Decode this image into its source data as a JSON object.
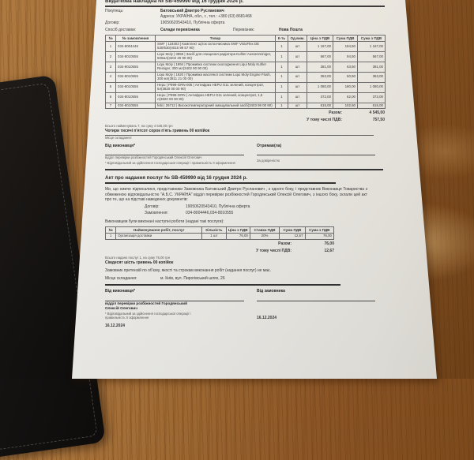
{
  "colors": {
    "wood_base": "#9d6832",
    "paper": "#f5f4f0",
    "folder": "#151312",
    "ink": "#3a3a3c"
  },
  "invoice": {
    "title": "Видаткова накладна № SB-459990 від 16 грудня 2024 р.",
    "buyer_label": "Покупець:",
    "buyer_name": "Батовський Дмитро Русланович",
    "buyer_address": "Адреса: УКРАЇНА, обл., г., тел.: +380 (63) 8681468",
    "contract_label": "Договір:",
    "contract_value": "19050620543410, Публічна оферта",
    "delivery_label": "Спосіб доставки:",
    "delivery_value": "Склади перевізника",
    "carrier_label": "Перевізник:",
    "carrier_value": "Нова Пошта",
    "table": {
      "headers": [
        "№",
        "№ замовлення",
        "Товар",
        "К-ть",
        "Од.вим.",
        "Ціна з ПДВ",
        "Сума ПДВ",
        "Сума з ПДВ"
      ],
      "rows": [
        [
          "1",
          "034-8004446",
          "SWF | 119303 | Комплект щіток склоочисника SWF VisioFlex DE 530/530(4016 99 57 90)",
          "1",
          "шт",
          "1 167,00",
          "194,50",
          "1 167,00"
        ],
        [
          "2",
          "034-8010555",
          "Liqui Moly | 3959 | Засіб для очищення радіатора Kuhler Aussenreiniger, 500мл(3402 20 90 00)",
          "1",
          "шт",
          "567,00",
          "94,50",
          "567,00"
        ],
        [
          "3",
          "034-8010555",
          "Liqui Moly | 1994 | Промивка системи охолодження Liqui Moly Kuhler Reiniger, 300 мл(3402 90 90 00)",
          "1",
          "шт",
          "381,00",
          "63,50",
          "381,00"
        ],
        [
          "4",
          "034-8010555",
          "Liqui Moly | 1920 | Промивка масляної системи Liqui Moly Engine Flush, 300 мл(3811 21 00 00)",
          "1",
          "шт",
          "363,00",
          "60,50",
          "363,00"
        ],
        [
          "5",
          "034-8010555",
          "Hepu | P999-GRN-005 | Антифриз HEPU G11 зелений, концентрат, 5л(3820 00 00 90)",
          "1",
          "шт",
          "1 080,00",
          "180,00",
          "1 080,00"
        ],
        [
          "6",
          "034-8010555",
          "Hepu | P999-GRN | Антифриз HEPU G11 зелений, концентрат, 1,5 л(3820 00 00 90)",
          "1",
          "шт",
          "372,00",
          "62,00",
          "372,00"
        ],
        [
          "7",
          "034-8010555",
          "febi | 26712 | Високотемпературний змащувальний засіб(3403 99 00 90)",
          "1",
          "шт",
          "615,00",
          "102,50",
          "615,00"
        ]
      ]
    },
    "total_label": "Разом:",
    "total_value": "4 545,00",
    "vat_label": "У тому числі ПДВ:",
    "vat_value": "757,50",
    "items_summary": "Всього найменувань 7, на суму 4 545,00 грн",
    "amount_words": "Чотири тисячі п'ятсот сорок п'ять гривень 00 копійок",
    "place_label": "Місце складання:",
    "from_executor": "Від виконавця*",
    "executor_name": "відділ перевірки розбіжностей Городянський Олексій Олегович",
    "executor_note": "* Відповідальний за здійснення господарської операції і правильність її оформлення",
    "received_label": "Отримав(ла)",
    "by_proxy": "За довіреністю"
  },
  "act": {
    "title": "Акт про надання послуг № SB-459990 від 16 грудня 2024 р.",
    "intro": "Ми, що нижче підписалися, представники Замовника Батовський Дмитро Русланович , з одного боку, і представник Виконавця Товариства з обмеженою відповідальністю \"А.Б.С. УКРАЇНА\" відділ перевірки розбіжностей Городянський Олексій Олегович, з іншого боку, склали цей акт про те, що на підставі наведених документів:",
    "contract_label": "Договір:",
    "contract_value": "19050620543410, Публічна оферта",
    "order_label": "Замовлення:",
    "order_value": "034-8004446,034-8010555",
    "work_intro": "Виконавцем були виконані наступні роботи (надані такі послуги):",
    "table": {
      "headers": [
        "№",
        "Найменування робіт, послуг",
        "Кількість",
        "Ціна з ПДВ",
        "Ставка ПДВ",
        "Сума ПДВ",
        "Сума з ПДВ"
      ],
      "rows": [
        [
          "1",
          "Організація доставки",
          "1 шт",
          "76,00",
          "20%",
          "12,67",
          "76,00"
        ]
      ]
    },
    "total_label": "Разом:",
    "total_value": "76,00",
    "vat_label": "У тому числі ПДВ:",
    "vat_value": "12,67",
    "items_summary": "Всього надано послуг 1, на суму 76,00 грн",
    "amount_words": "Сімдесят шість гривень 00 копійок",
    "claims": "Замовник претензій по об'єму, якості та строкам виконання робіт (надання послуг) не має.",
    "place_label": "Місце складання:",
    "place_value": "м. Київ, вул. Пирогівський шлях, 26",
    "from_executor": "Від виконавця*",
    "from_customer": "Від замовника",
    "executor_name": "відділ перевірки розбіжностей Городянський Олексій Олегович",
    "executor_note": "* Відповідальний за здійснення господарської операції і правильність її оформлення",
    "date_left": "16.12.2024",
    "date_right": "16.12.2024"
  }
}
